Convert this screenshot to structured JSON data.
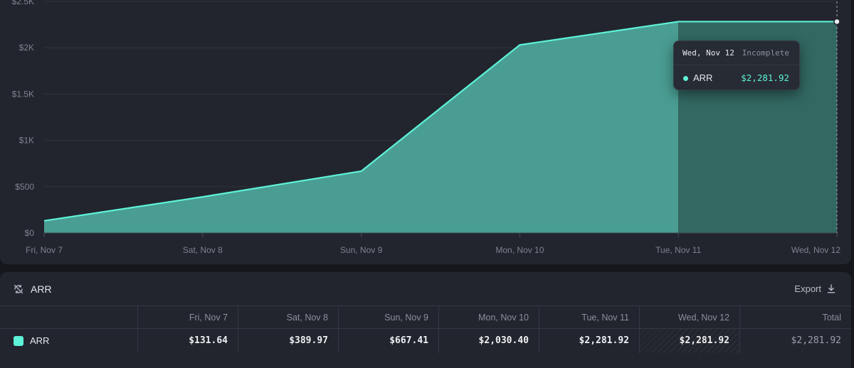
{
  "colors": {
    "line": "#5ef2d8",
    "area": "#4a9d93",
    "area_incomplete": "#326861",
    "grid": "#30343d"
  },
  "chart_data": {
    "type": "area",
    "title": "ARR",
    "categories": [
      "Fri, Nov 7",
      "Sat, Nov 8",
      "Sun, Nov 9",
      "Mon, Nov 10",
      "Tue, Nov 11",
      "Wed, Nov 12"
    ],
    "series": [
      {
        "name": "ARR",
        "values": [
          131.64,
          389.97,
          667.41,
          2030.4,
          2281.92,
          2281.92
        ]
      }
    ],
    "y_ticks": [
      "$0",
      "$500",
      "$1K",
      "$1.5K",
      "$2K",
      "$2.5K"
    ],
    "ylim": [
      0,
      2500
    ],
    "incomplete_from_index": 4,
    "grid": true
  },
  "tooltip": {
    "date": "Wed, Nov 12",
    "status": "Incomplete",
    "series_name": "ARR",
    "value": "$2,281.92"
  },
  "table": {
    "title": "ARR",
    "export_label": "Export",
    "headers": [
      "Fri, Nov 7",
      "Sat, Nov 8",
      "Sun, Nov 9",
      "Mon, Nov 10",
      "Tue, Nov 11",
      "Wed, Nov 12",
      "Total"
    ],
    "row": {
      "name": "ARR",
      "values": [
        "$131.64",
        "$389.97",
        "$667.41",
        "$2,030.40",
        "$2,281.92",
        "$2,281.92",
        "$2,281.92"
      ]
    }
  },
  "icons": {
    "title_icon": "sync-off-icon",
    "export_icon": "download-icon"
  }
}
